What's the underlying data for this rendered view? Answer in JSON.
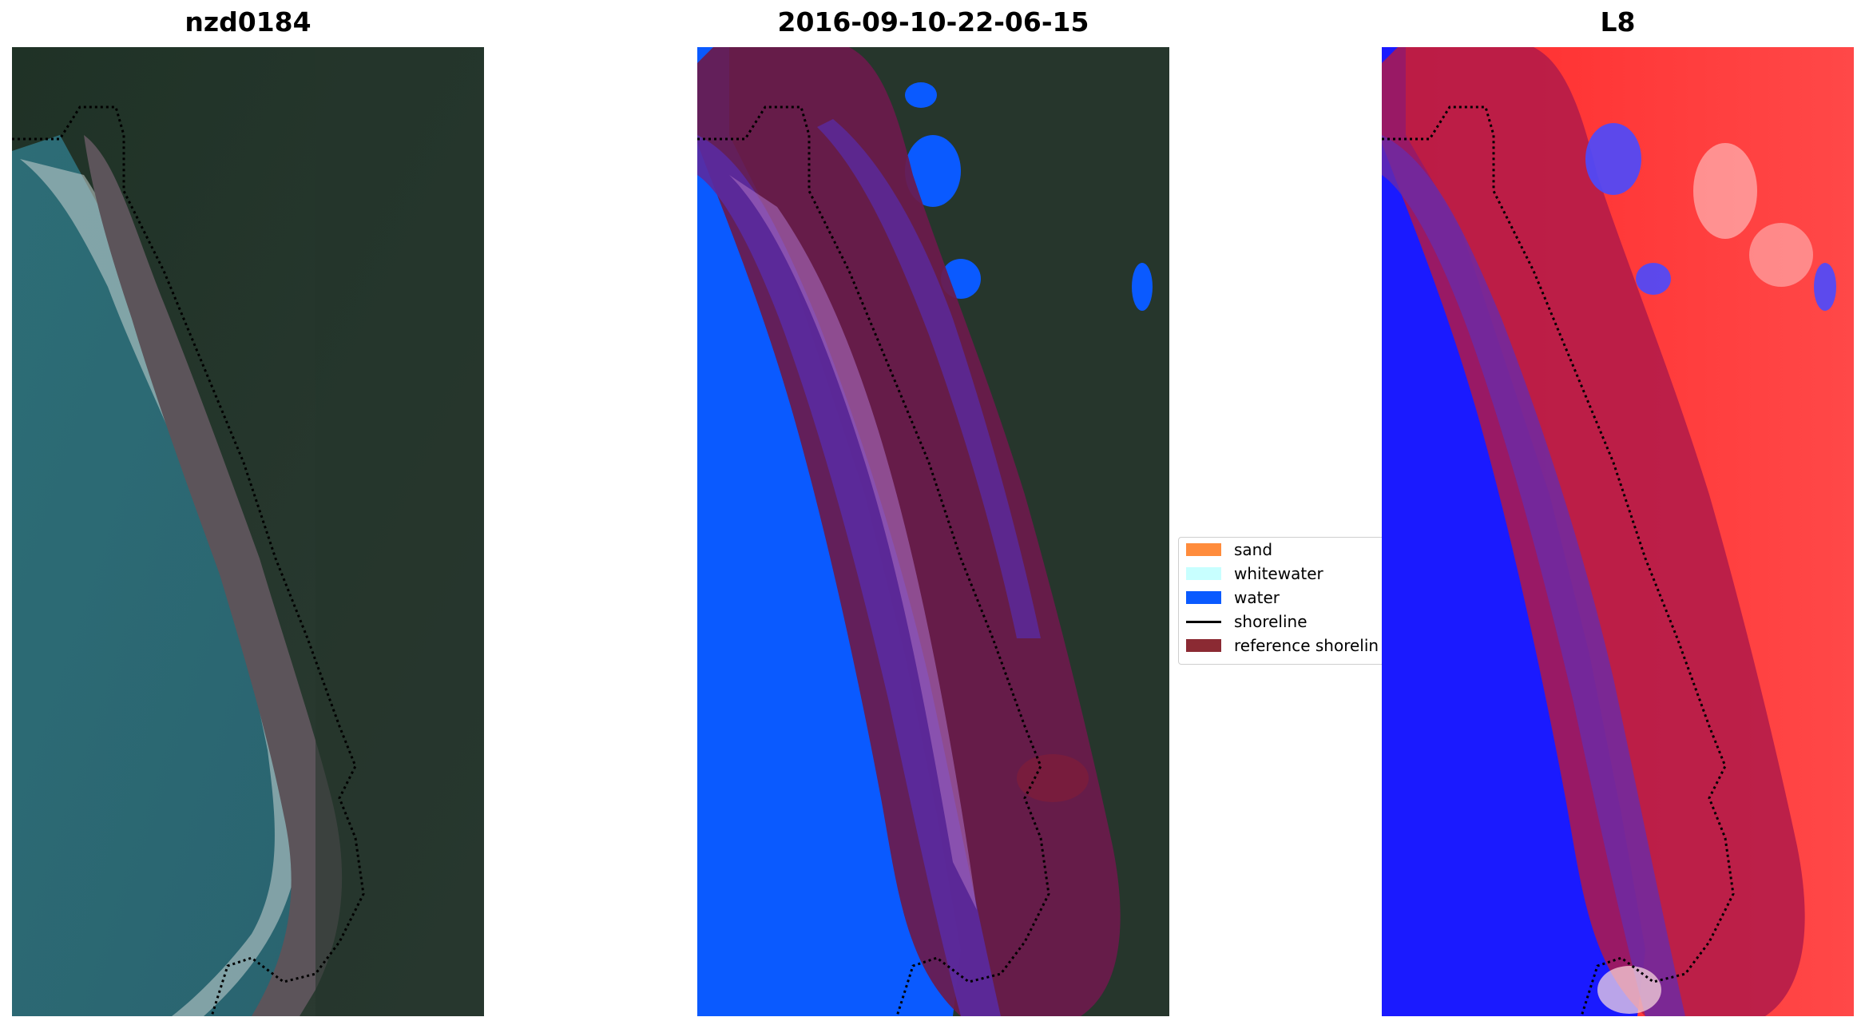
{
  "panels": [
    {
      "title": "nzd0184"
    },
    {
      "title": "2016-09-10-22-06-15"
    },
    {
      "title": "L8"
    }
  ],
  "legend": {
    "items": [
      {
        "label": "sand",
        "color": "#ff8c3c",
        "kind": "patch"
      },
      {
        "label": "whitewater",
        "color": "#c8ffff",
        "kind": "patch"
      },
      {
        "label": "water",
        "color": "#0a5aff",
        "kind": "patch"
      },
      {
        "label": "shoreline",
        "color": "#000000",
        "kind": "line"
      },
      {
        "label": "reference shorelin",
        "color": "#8b2a33",
        "kind": "patch"
      }
    ]
  },
  "colors": {
    "ocean": "#2e6f78",
    "forest": "#25372d",
    "beach": "#5a5258",
    "water_class": "#0a5aff",
    "buffer_overlay": "#6b1a4c",
    "sand_overlay": "#5a2aa0",
    "index_red": "#ff1a1a",
    "index_blue": "#1a1aff"
  }
}
